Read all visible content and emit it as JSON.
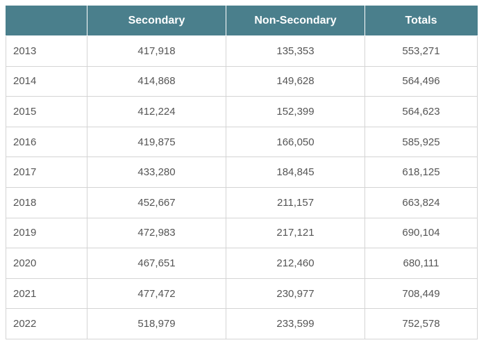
{
  "table": {
    "headers": [
      "",
      "Secondary",
      "Non-Secondary",
      "Totals"
    ],
    "rows": [
      {
        "year": "2013",
        "secondary": "417,918",
        "non_secondary": "135,353",
        "totals": "553,271"
      },
      {
        "year": "2014",
        "secondary": "414,868",
        "non_secondary": "149,628",
        "totals": "564,496"
      },
      {
        "year": "2015",
        "secondary": "412,224",
        "non_secondary": "152,399",
        "totals": "564,623"
      },
      {
        "year": "2016",
        "secondary": "419,875",
        "non_secondary": "166,050",
        "totals": "585,925"
      },
      {
        "year": "2017",
        "secondary": "433,280",
        "non_secondary": "184,845",
        "totals": "618,125"
      },
      {
        "year": "2018",
        "secondary": "452,667",
        "non_secondary": "211,157",
        "totals": "663,824"
      },
      {
        "year": "2019",
        "secondary": "472,983",
        "non_secondary": "217,121",
        "totals": "690,104"
      },
      {
        "year": "2020",
        "secondary": "467,651",
        "non_secondary": "212,460",
        "totals": "680,111"
      },
      {
        "year": "2021",
        "secondary": "477,472",
        "non_secondary": "230,977",
        "totals": "708,449"
      },
      {
        "year": "2022",
        "secondary": "518,979",
        "non_secondary": "233,599",
        "totals": "752,578"
      }
    ]
  },
  "colors": {
    "header_bg": "#4a7f8c",
    "header_text": "#ffffff",
    "cell_text": "#555555",
    "border": "#d4d4d4"
  }
}
